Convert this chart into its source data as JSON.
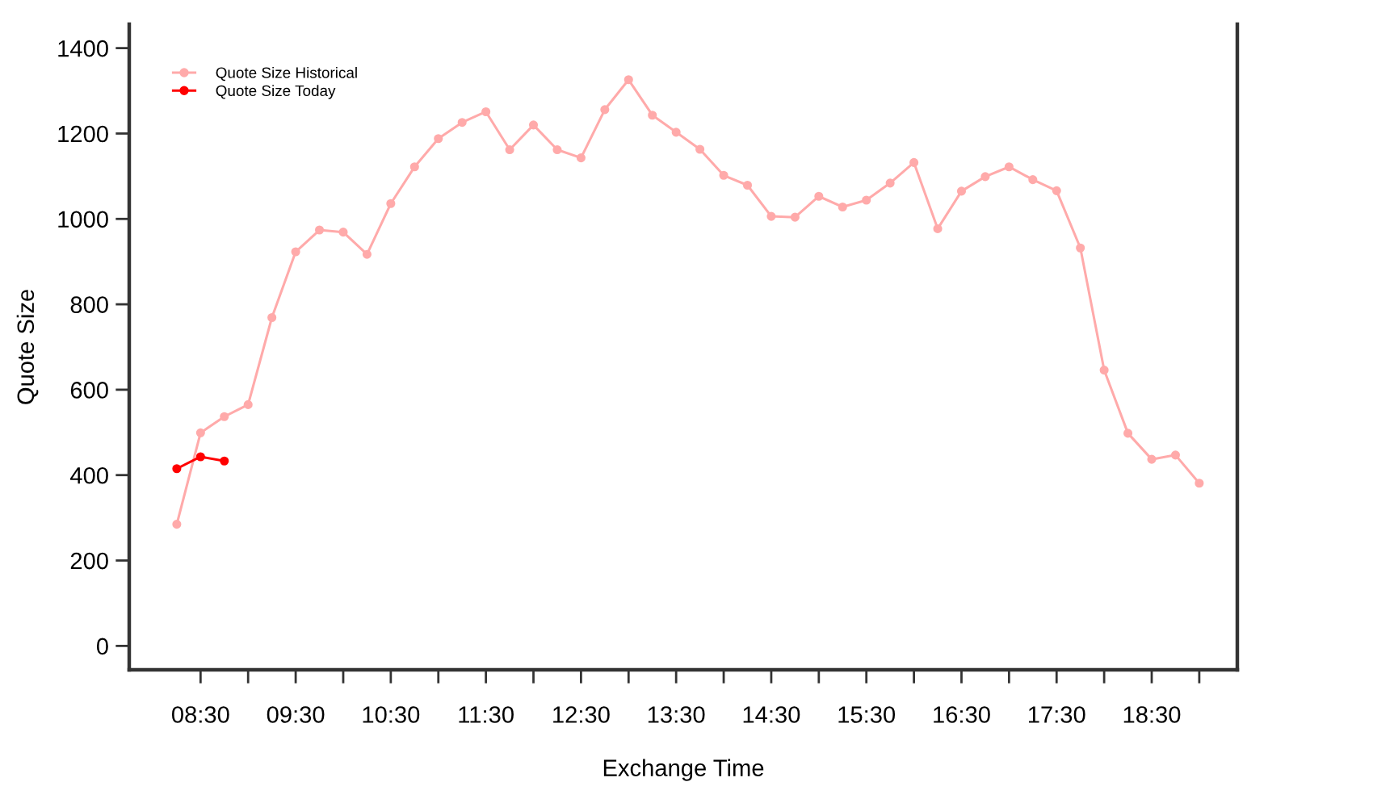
{
  "chart_data": {
    "type": "line",
    "xlabel": "Exchange Time",
    "ylabel": "Quote Size",
    "x": [
      8.25,
      8.5,
      8.75,
      9.0,
      9.25,
      9.5,
      9.75,
      10.0,
      10.25,
      10.5,
      10.75,
      11.0,
      11.25,
      11.5,
      11.75,
      12.0,
      12.25,
      12.5,
      12.75,
      13.0,
      13.25,
      13.5,
      13.75,
      14.0,
      14.25,
      14.5,
      14.75,
      15.0,
      15.25,
      15.5,
      15.75,
      16.0,
      16.25,
      16.5,
      16.75,
      17.0,
      17.25,
      17.5,
      17.75,
      18.0,
      18.25,
      18.5,
      18.75,
      19.0
    ],
    "series": [
      {
        "name": "Quote Size Historical",
        "color": "#ffaaaa",
        "values": [
          285,
          499,
          537,
          565,
          769,
          923,
          974,
          969,
          917,
          1036,
          1122,
          1188,
          1226,
          1251,
          1162,
          1220,
          1162,
          1143,
          1256,
          1326,
          1243,
          1203,
          1163,
          1102,
          1079,
          1006,
          1004,
          1053,
          1028,
          1044,
          1084,
          1132,
          977,
          1065,
          1099,
          1122,
          1092,
          1066,
          932,
          646,
          498,
          437,
          447,
          381
        ]
      },
      {
        "name": "Quote Size Today",
        "color": "#ff0000",
        "x": [
          8.25,
          8.5,
          8.75
        ],
        "values": [
          415,
          443,
          433
        ]
      }
    ],
    "xlim": [
      7.75,
      19.4
    ],
    "xticks": [
      {
        "value": 8.5,
        "label": "08:30"
      },
      {
        "value": 9.0,
        "label": null
      },
      {
        "value": 9.5,
        "label": "09:30"
      },
      {
        "value": 10.0,
        "label": null
      },
      {
        "value": 10.5,
        "label": "10:30"
      },
      {
        "value": 11.0,
        "label": null
      },
      {
        "value": 11.5,
        "label": "11:30"
      },
      {
        "value": 12.0,
        "label": null
      },
      {
        "value": 12.5,
        "label": "12:30"
      },
      {
        "value": 13.0,
        "label": null
      },
      {
        "value": 13.5,
        "label": "13:30"
      },
      {
        "value": 14.0,
        "label": null
      },
      {
        "value": 14.5,
        "label": "14:30"
      },
      {
        "value": 15.0,
        "label": null
      },
      {
        "value": 15.5,
        "label": "15:30"
      },
      {
        "value": 16.0,
        "label": null
      },
      {
        "value": 16.5,
        "label": "16:30"
      },
      {
        "value": 17.0,
        "label": null
      },
      {
        "value": 17.5,
        "label": "17:30"
      },
      {
        "value": 18.0,
        "label": null
      },
      {
        "value": 18.5,
        "label": "18:30"
      },
      {
        "value": 19.0,
        "label": null
      }
    ],
    "ylim": [
      -56,
      1456
    ],
    "yticks": [
      0,
      200,
      400,
      600,
      800,
      1000,
      1200,
      1400
    ],
    "grid": false,
    "legend": "top left",
    "marker": "circle",
    "line_style": "solid"
  }
}
